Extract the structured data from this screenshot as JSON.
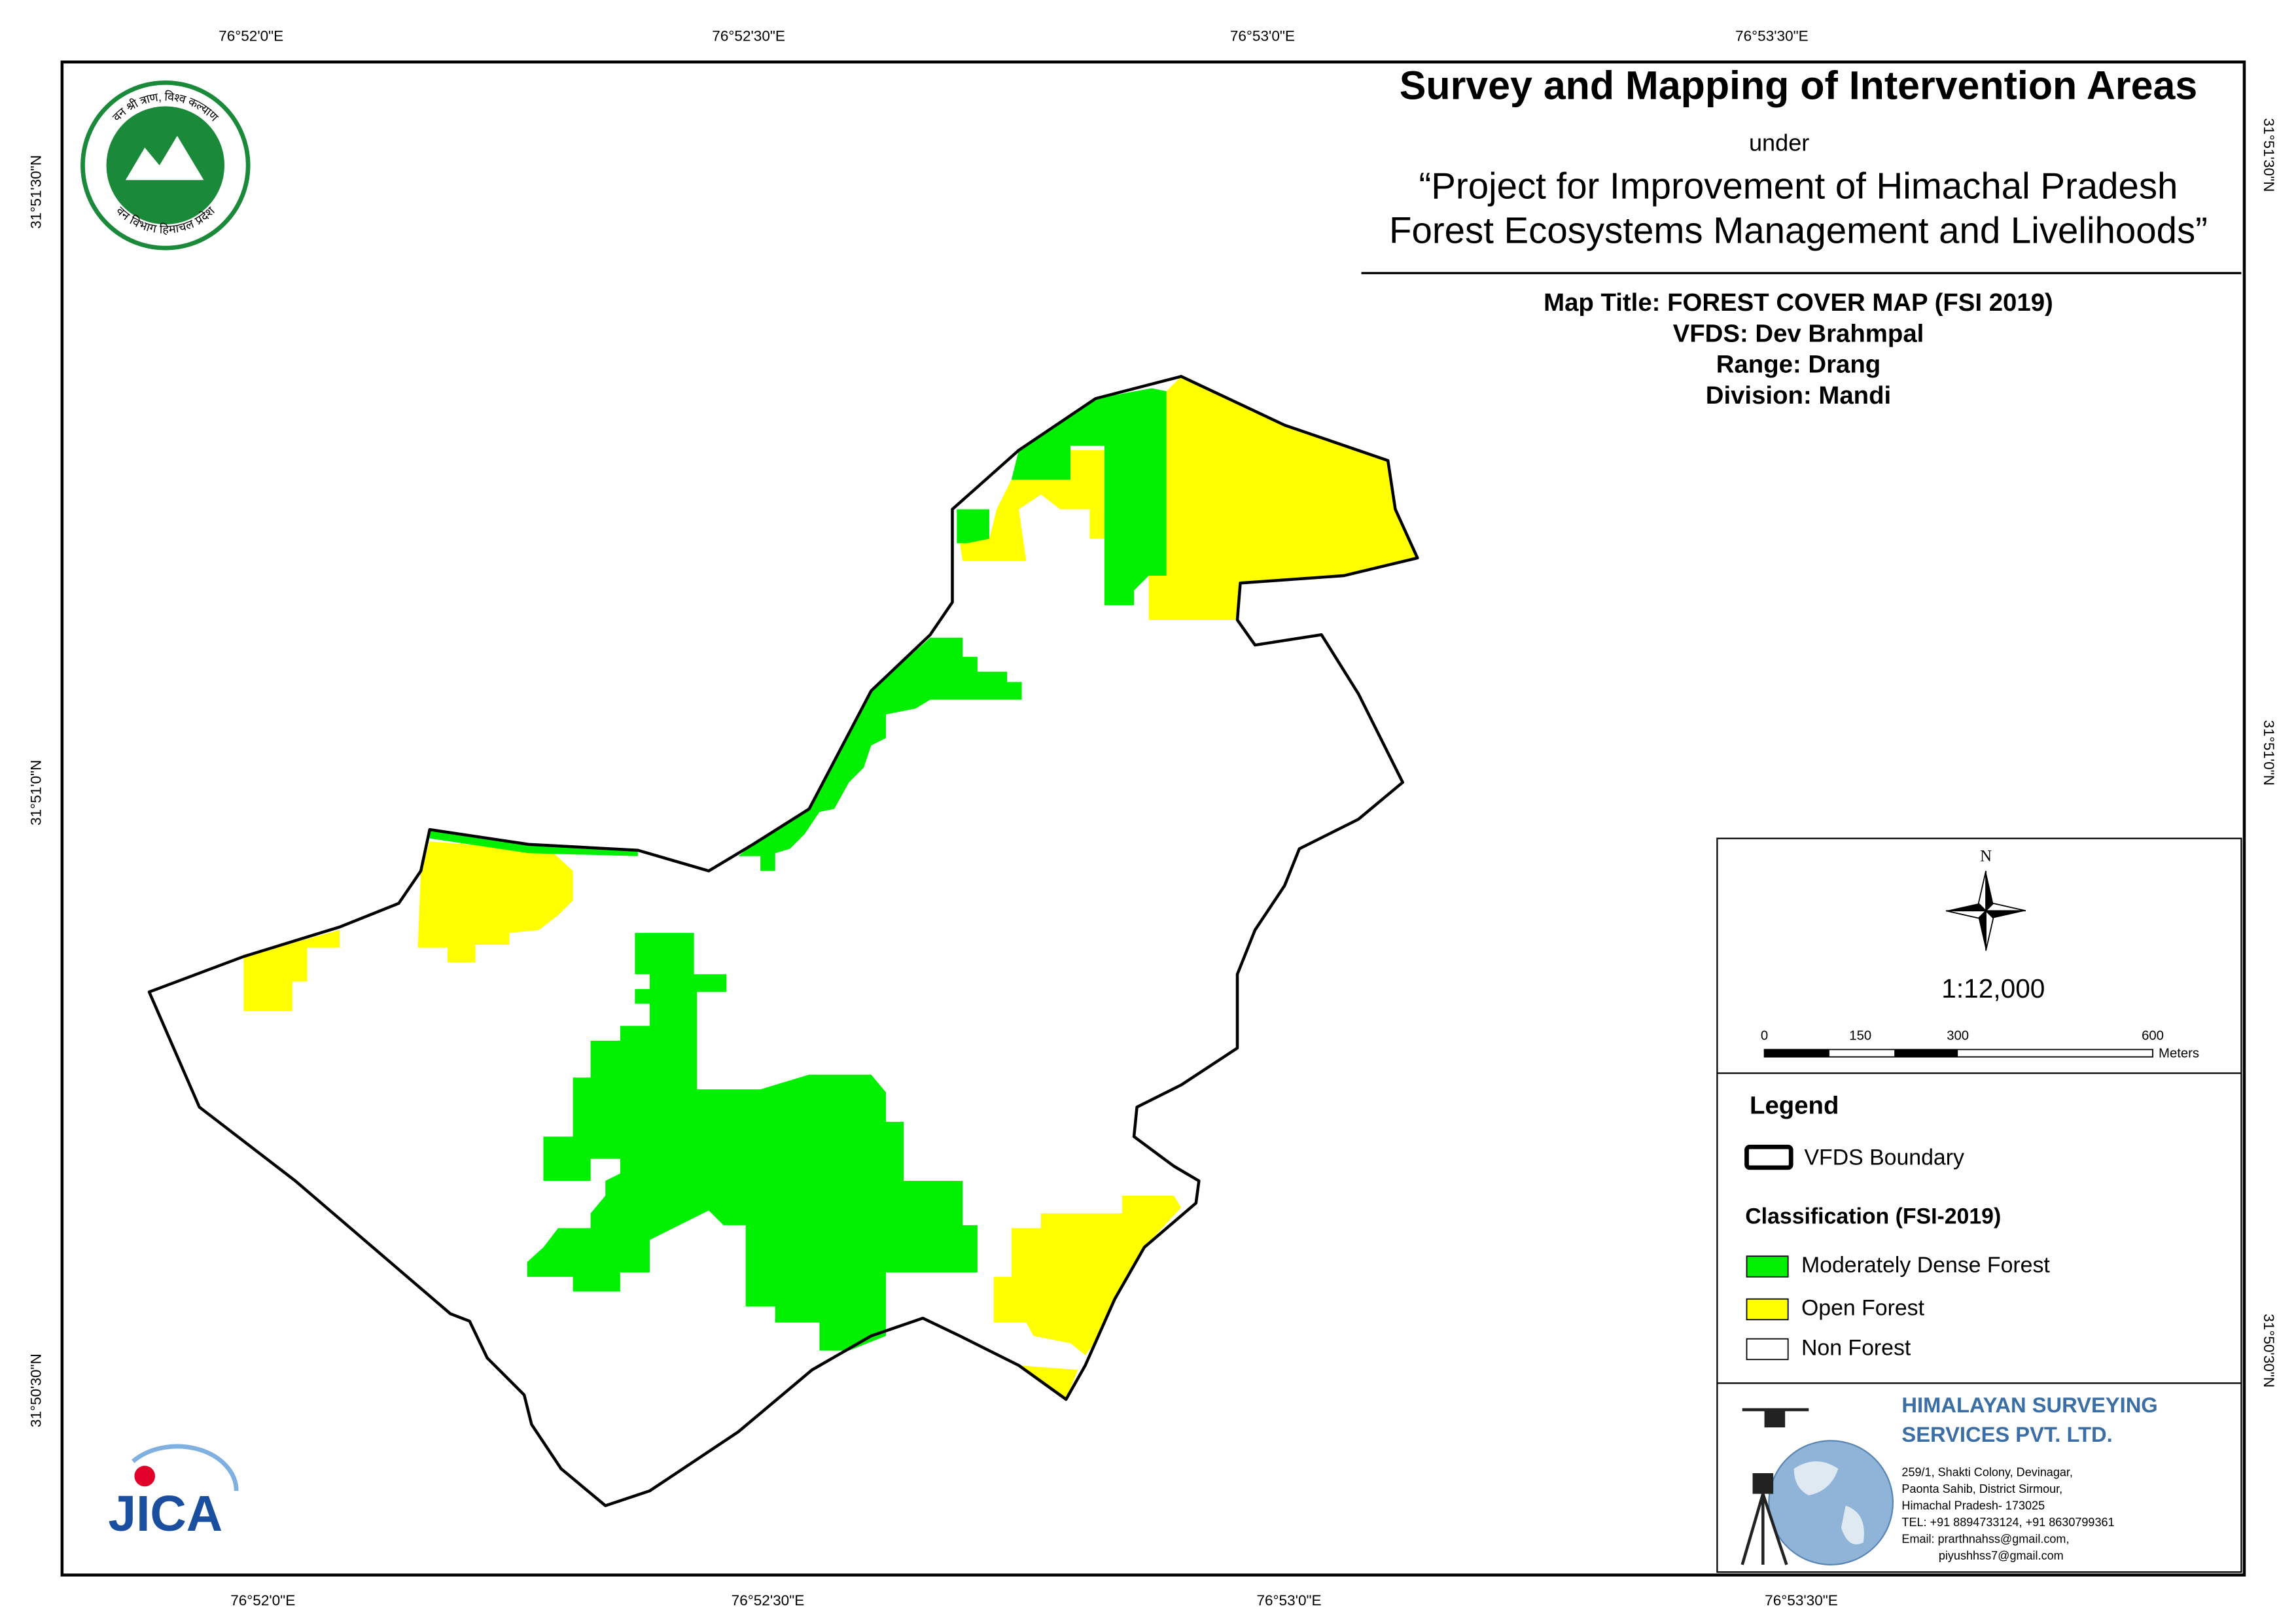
{
  "header": {
    "title": "Survey and Mapping of Intervention Areas",
    "under": "under",
    "project_line1": "“Project for Improvement of Himachal Pradesh",
    "project_line2": "Forest Ecosystems Management and Livelihoods”"
  },
  "map_info": {
    "map_title": "Map Title: FOREST COVER MAP (FSI 2019)",
    "vfds": "VFDS: Dev Brahmpal",
    "range": "Range: Drang",
    "division": "Division: Mandi"
  },
  "coordinates": {
    "top": [
      "76°52'0\"E",
      "76°52'30\"E",
      "76°53'0\"E",
      "76°53'30\"E"
    ],
    "bottom": [
      "76°52'0\"E",
      "76°52'30\"E",
      "76°53'0\"E",
      "76°53'30\"E"
    ],
    "left": [
      "31°51'30\"N",
      "31°51'0\"N",
      "31°50'30\"N"
    ],
    "right": [
      "31°51'30\"N",
      "31°51'0\"N",
      "31°50'30\"N"
    ]
  },
  "logo": {
    "top_text": "वन श्री त्राण, विश्व कल्याण",
    "bottom_text": "वन विभाग हिमाचल प्रदेश",
    "jica": "JICA"
  },
  "north": "N",
  "scale": "1:12,000",
  "scale_bar": {
    "ticks": [
      "0",
      "150",
      "300",
      "600"
    ],
    "unit": "Meters"
  },
  "legend": {
    "title": "Legend",
    "boundary": "VFDS Boundary",
    "classification_title": "Classification (FSI-2019)",
    "classes": [
      {
        "name": "Moderately Dense Forest",
        "color": "#00f000"
      },
      {
        "name": "Open Forest",
        "color": "#ffff00"
      },
      {
        "name": "Non Forest",
        "color": "#ffffff"
      }
    ]
  },
  "company": {
    "name_line1": "HIMALAYAN SURVEYING",
    "name_line2": "SERVICES PVT. LTD.",
    "address": [
      "259/1, Shakti Colony, Devinagar,",
      "Paonta Sahib, District Sirmour,",
      "Himachal Pradesh- 173025",
      "TEL: +91 8894733124, +91 8630799361",
      "Email: prarthnahss@gmail.com,",
      "piyushhss7@gmail.com"
    ]
  }
}
